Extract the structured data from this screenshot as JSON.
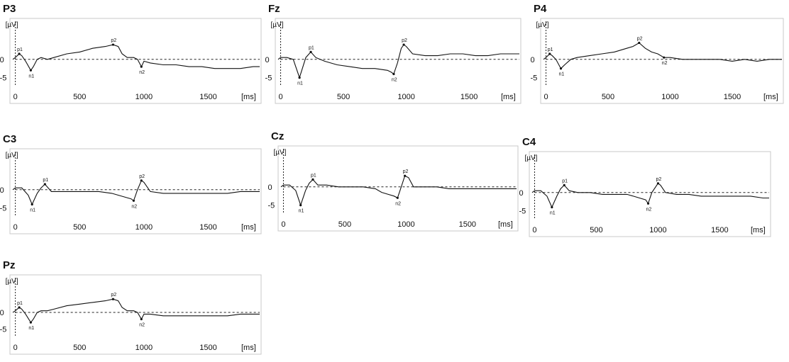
{
  "chart_data": [
    {
      "type": "line",
      "electrode": "P3",
      "ylabel": "[µV]",
      "xlabel": "[ms]",
      "xlim": [
        -20,
        1900
      ],
      "ylim": [
        -7,
        10
      ],
      "x_ticks": [
        "0",
        "500",
        "1000",
        "1500"
      ],
      "x_tick_values": [
        0,
        500,
        1000,
        1500
      ],
      "y_ticks": [
        "0",
        "-5"
      ],
      "y_tick_values": [
        0,
        -5
      ],
      "series": [
        {
          "x": [
            -20,
            0,
            30,
            50,
            80,
            120,
            140,
            170,
            200,
            250,
            300,
            400,
            500,
            600,
            700,
            760,
            800,
            830,
            870,
            920,
            950,
            980,
            1000,
            1050,
            1150,
            1250,
            1350,
            1450,
            1550,
            1650,
            1750,
            1850,
            1900
          ],
          "y": [
            0,
            0.5,
            1.5,
            1,
            -0.5,
            -3,
            -2,
            0,
            0.5,
            0,
            0.5,
            1.5,
            2,
            3,
            3.5,
            4,
            3.5,
            1.5,
            0.5,
            0.5,
            0,
            -2,
            -0.5,
            -1,
            -1.5,
            -1.5,
            -2,
            -2,
            -2.5,
            -2.5,
            -2.5,
            -2,
            -2
          ]
        }
      ],
      "peaks": [
        {
          "label": "n1",
          "x": 120,
          "y": -3
        },
        {
          "label": "p1",
          "x": 30,
          "y": 1.5
        },
        {
          "label": "n2",
          "x": 980,
          "y": -2
        },
        {
          "label": "p2",
          "x": 760,
          "y": 4
        }
      ]
    },
    {
      "type": "line",
      "electrode": "Fz",
      "ylabel": "[µV]",
      "xlabel": "[ms]",
      "xlim": [
        -20,
        1900
      ],
      "ylim": [
        -7,
        10
      ],
      "x_ticks": [
        "0",
        "500",
        "1000",
        "1500"
      ],
      "x_tick_values": [
        0,
        500,
        1000,
        1500
      ],
      "y_ticks": [
        "0",
        "-5"
      ],
      "y_tick_values": [
        0,
        -5
      ],
      "series": [
        {
          "x": [
            -20,
            0,
            50,
            100,
            150,
            200,
            240,
            280,
            350,
            450,
            550,
            650,
            750,
            850,
            880,
            900,
            930,
            960,
            980,
            1000,
            1050,
            1150,
            1250,
            1350,
            1450,
            1550,
            1650,
            1750,
            1850,
            1900
          ],
          "y": [
            0,
            0.5,
            0.5,
            0,
            -5,
            0.5,
            2,
            0.5,
            -0.5,
            -1.5,
            -2,
            -2.5,
            -2.5,
            -3,
            -3.5,
            -4,
            -1,
            3,
            4,
            3.5,
            1.5,
            1,
            1,
            1.5,
            1.5,
            1,
            1,
            1.5,
            1.5,
            1.5
          ]
        }
      ],
      "peaks": [
        {
          "label": "n1",
          "x": 150,
          "y": -5
        },
        {
          "label": "p1",
          "x": 240,
          "y": 2
        },
        {
          "label": "n2",
          "x": 900,
          "y": -4
        },
        {
          "label": "p2",
          "x": 980,
          "y": 4
        }
      ]
    },
    {
      "type": "line",
      "electrode": "P4",
      "ylabel": "[µV]",
      "xlabel": "[ms]",
      "xlim": [
        -20,
        1900
      ],
      "ylim": [
        -7,
        10
      ],
      "x_ticks": [
        "0",
        "500",
        "1000",
        "1500"
      ],
      "x_tick_values": [
        0,
        500,
        1000,
        1500
      ],
      "y_ticks": [
        "0",
        "-5"
      ],
      "y_tick_values": [
        0,
        -5
      ],
      "series": [
        {
          "x": [
            -20,
            0,
            30,
            50,
            80,
            120,
            150,
            200,
            250,
            350,
            450,
            550,
            650,
            700,
            750,
            800,
            850,
            900,
            950,
            1000,
            1100,
            1200,
            1300,
            1400,
            1500,
            1600,
            1700,
            1800,
            1900
          ],
          "y": [
            0,
            0.5,
            1.5,
            1,
            0,
            -2.5,
            -1.5,
            0,
            0.5,
            1,
            1.5,
            2,
            3,
            3.5,
            4.5,
            3,
            2,
            1.5,
            0.5,
            0.5,
            0,
            0,
            0,
            0,
            -0.5,
            0,
            -0.5,
            0,
            0
          ]
        }
      ],
      "peaks": [
        {
          "label": "n1",
          "x": 120,
          "y": -2.5
        },
        {
          "label": "p1",
          "x": 30,
          "y": 1.5
        },
        {
          "label": "n2",
          "x": 950,
          "y": 0.5
        },
        {
          "label": "p2",
          "x": 750,
          "y": 4.5
        }
      ]
    },
    {
      "type": "line",
      "electrode": "C3",
      "ylabel": "[µV]",
      "xlabel": "[ms]",
      "xlim": [
        -20,
        1900
      ],
      "ylim": [
        -7,
        10
      ],
      "x_ticks": [
        "0",
        "500",
        "1000",
        "1500"
      ],
      "x_tick_values": [
        0,
        500,
        1000,
        1500
      ],
      "y_ticks": [
        "0",
        "-5"
      ],
      "y_tick_values": [
        0,
        -5
      ],
      "series": [
        {
          "x": [
            -20,
            0,
            50,
            100,
            130,
            170,
            200,
            230,
            280,
            350,
            450,
            550,
            650,
            750,
            800,
            850,
            900,
            920,
            950,
            980,
            1000,
            1050,
            1150,
            1250,
            1350,
            1450,
            1550,
            1650,
            1750,
            1850,
            1900
          ],
          "y": [
            0,
            0.5,
            0.5,
            -1.5,
            -4,
            -1,
            0.5,
            1.5,
            -0.5,
            -0.5,
            -0.5,
            -0.5,
            -0.5,
            -1,
            -1.5,
            -2,
            -2.5,
            -3,
            0,
            2.5,
            2,
            -0.5,
            -1,
            -1,
            -1,
            -1,
            -1,
            -1,
            -0.5,
            -0.5,
            -0.5
          ]
        }
      ],
      "peaks": [
        {
          "label": "n1",
          "x": 130,
          "y": -4
        },
        {
          "label": "p1",
          "x": 230,
          "y": 1.5
        },
        {
          "label": "n2",
          "x": 920,
          "y": -3
        },
        {
          "label": "p2",
          "x": 980,
          "y": 2.5
        }
      ]
    },
    {
      "type": "line",
      "electrode": "Cz",
      "ylabel": "[µV]",
      "xlabel": "[ms]",
      "xlim": [
        -20,
        1900
      ],
      "ylim": [
        -7,
        10
      ],
      "x_ticks": [
        "0",
        "500",
        "1000",
        "1500"
      ],
      "x_tick_values": [
        0,
        500,
        1000,
        1500
      ],
      "y_ticks": [
        "0",
        "-5"
      ],
      "y_tick_values": [
        0,
        -5
      ],
      "series": [
        {
          "x": [
            -20,
            0,
            50,
            100,
            140,
            180,
            210,
            240,
            280,
            350,
            450,
            550,
            650,
            750,
            800,
            850,
            900,
            930,
            960,
            990,
            1020,
            1060,
            1150,
            1250,
            1350,
            1450,
            1550,
            1650,
            1750,
            1850,
            1900
          ],
          "y": [
            0,
            0.5,
            0.5,
            -1,
            -5,
            -1,
            1,
            2,
            0.5,
            0.5,
            0,
            0,
            0,
            -0.5,
            -1.5,
            -2,
            -2.5,
            -3,
            0,
            3,
            2.5,
            0,
            0,
            0,
            -0.5,
            -0.5,
            -0.5,
            -0.5,
            -0.5,
            -0.5,
            -0.5
          ]
        }
      ],
      "peaks": [
        {
          "label": "n1",
          "x": 140,
          "y": -5
        },
        {
          "label": "p1",
          "x": 240,
          "y": 2
        },
        {
          "label": "n2",
          "x": 930,
          "y": -3
        },
        {
          "label": "p2",
          "x": 990,
          "y": 3
        }
      ]
    },
    {
      "type": "line",
      "electrode": "C4",
      "ylabel": "[µV]",
      "xlabel": "[ms]",
      "xlim": [
        -20,
        1900
      ],
      "ylim": [
        -7,
        10
      ],
      "x_ticks": [
        "0",
        "500",
        "1000",
        "1500"
      ],
      "x_tick_values": [
        0,
        500,
        1000,
        1500
      ],
      "y_ticks": [
        "0",
        "-5"
      ],
      "y_tick_values": [
        0,
        -5
      ],
      "series": [
        {
          "x": [
            -20,
            0,
            50,
            100,
            140,
            180,
            210,
            240,
            280,
            350,
            450,
            550,
            650,
            750,
            800,
            850,
            900,
            920,
            950,
            1000,
            1020,
            1060,
            1150,
            1250,
            1350,
            1450,
            1550,
            1650,
            1750,
            1850,
            1900
          ],
          "y": [
            0,
            0.5,
            0.5,
            -1,
            -4,
            -1,
            1,
            2,
            0.5,
            0,
            0,
            -0.5,
            -0.5,
            -0.5,
            -1,
            -1.5,
            -2,
            -3,
            0,
            2.5,
            2,
            0,
            -0.5,
            -0.5,
            -1,
            -1,
            -1,
            -1,
            -1,
            -1.5,
            -1.5
          ]
        }
      ],
      "peaks": [
        {
          "label": "n1",
          "x": 140,
          "y": -4
        },
        {
          "label": "p1",
          "x": 240,
          "y": 2
        },
        {
          "label": "n2",
          "x": 920,
          "y": -3
        },
        {
          "label": "p2",
          "x": 1000,
          "y": 2.5
        }
      ]
    },
    {
      "type": "line",
      "electrode": "Pz",
      "ylabel": "[µV]",
      "xlabel": "[ms]",
      "xlim": [
        -20,
        1900
      ],
      "ylim": [
        -7,
        10
      ],
      "x_ticks": [
        "0",
        "500",
        "1000",
        "1500"
      ],
      "x_tick_values": [
        0,
        500,
        1000,
        1500
      ],
      "y_ticks": [
        "0",
        "-5"
      ],
      "y_tick_values": [
        0,
        -5
      ],
      "series": [
        {
          "x": [
            -20,
            0,
            30,
            50,
            80,
            120,
            140,
            170,
            200,
            250,
            300,
            400,
            500,
            600,
            700,
            760,
            800,
            830,
            870,
            920,
            950,
            980,
            1000,
            1050,
            1150,
            1250,
            1350,
            1450,
            1550,
            1650,
            1750,
            1850,
            1900
          ],
          "y": [
            0,
            0.5,
            1.5,
            1,
            -0.5,
            -3,
            -2,
            0,
            0.5,
            0.5,
            1,
            2,
            2.5,
            3,
            3.5,
            4,
            3.5,
            1.5,
            0.5,
            0.5,
            0,
            -2,
            -0.5,
            -0.5,
            -1,
            -1,
            -1,
            -1,
            -1,
            -1,
            -0.5,
            -0.5,
            -0.5
          ]
        }
      ],
      "peaks": [
        {
          "label": "n1",
          "x": 120,
          "y": -3
        },
        {
          "label": "p1",
          "x": 30,
          "y": 1.5
        },
        {
          "label": "n2",
          "x": 980,
          "y": -2
        },
        {
          "label": "p2",
          "x": 760,
          "y": 4
        }
      ]
    }
  ]
}
